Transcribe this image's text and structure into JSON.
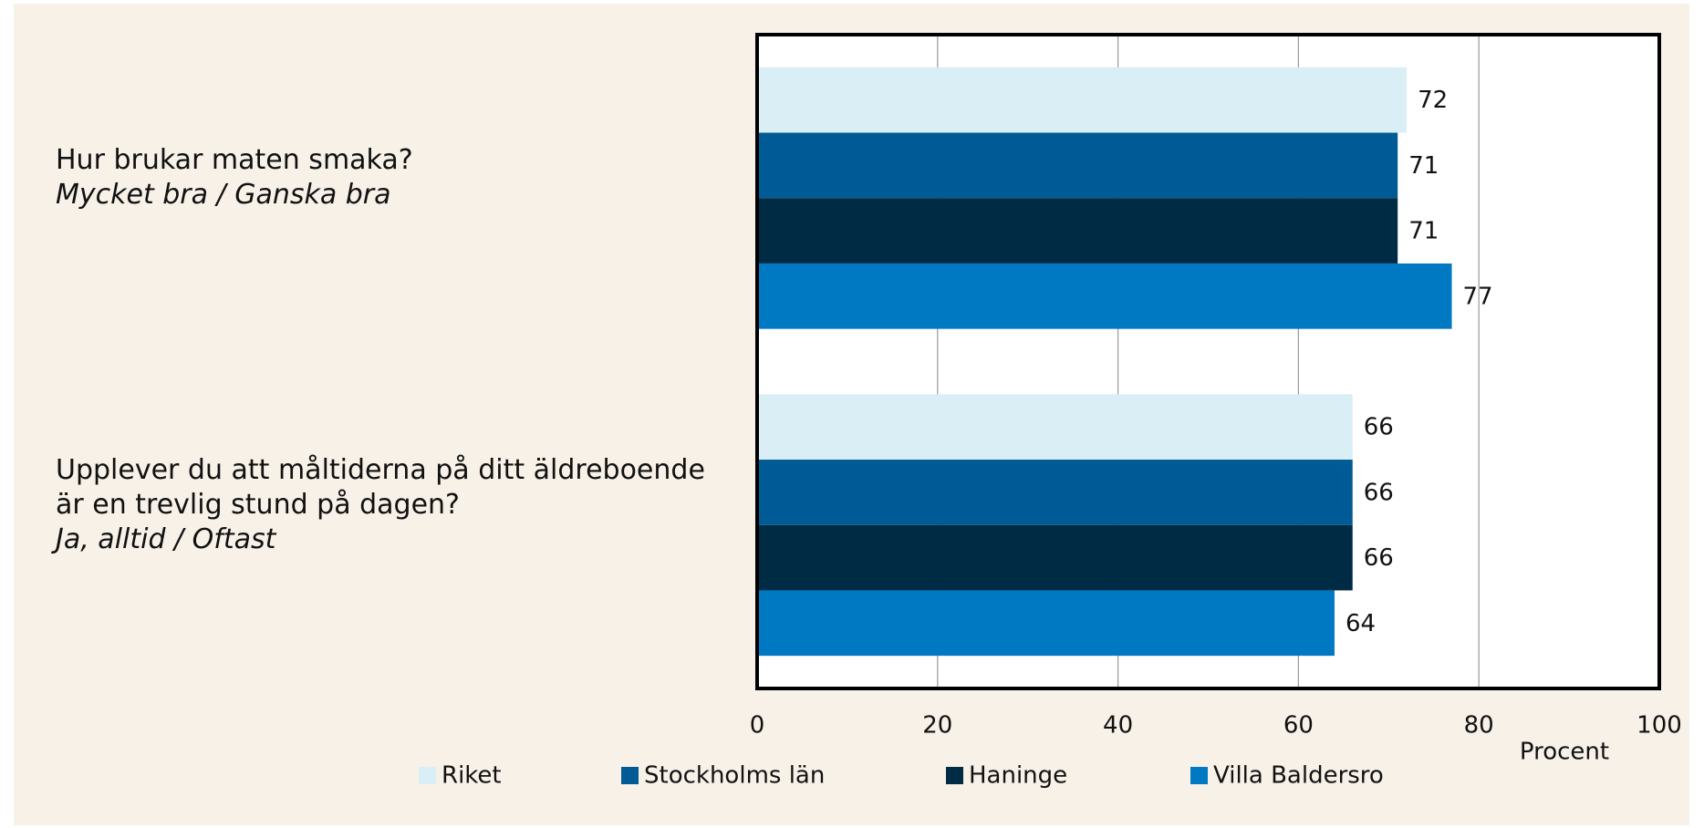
{
  "chart_data": {
    "type": "hbar",
    "categories": [
      "Hur brukar maten smaka?",
      "Upplever du att måltiderna på ditt äldreboende är en trevlig stund på dagen?"
    ],
    "category_answers": [
      "Mycket bra / Ganska bra",
      "Ja, alltid / Oftast"
    ],
    "series": [
      {
        "name": "Riket",
        "color": "#daeef6",
        "values": [
          72,
          66
        ]
      },
      {
        "name": "Stockholms län",
        "color": "#005a96",
        "values": [
          71,
          66
        ]
      },
      {
        "name": "Haninge",
        "color": "#002b45",
        "values": [
          71,
          66
        ]
      },
      {
        "name": "Villa Baldersro",
        "color": "#0079c2",
        "values": [
          77,
          64
        ]
      }
    ],
    "xlabel": "Procent",
    "xlim": [
      0,
      100
    ],
    "xticks": [
      0,
      20,
      40,
      60,
      80,
      100
    ],
    "grid": true,
    "legend": "bottom"
  }
}
